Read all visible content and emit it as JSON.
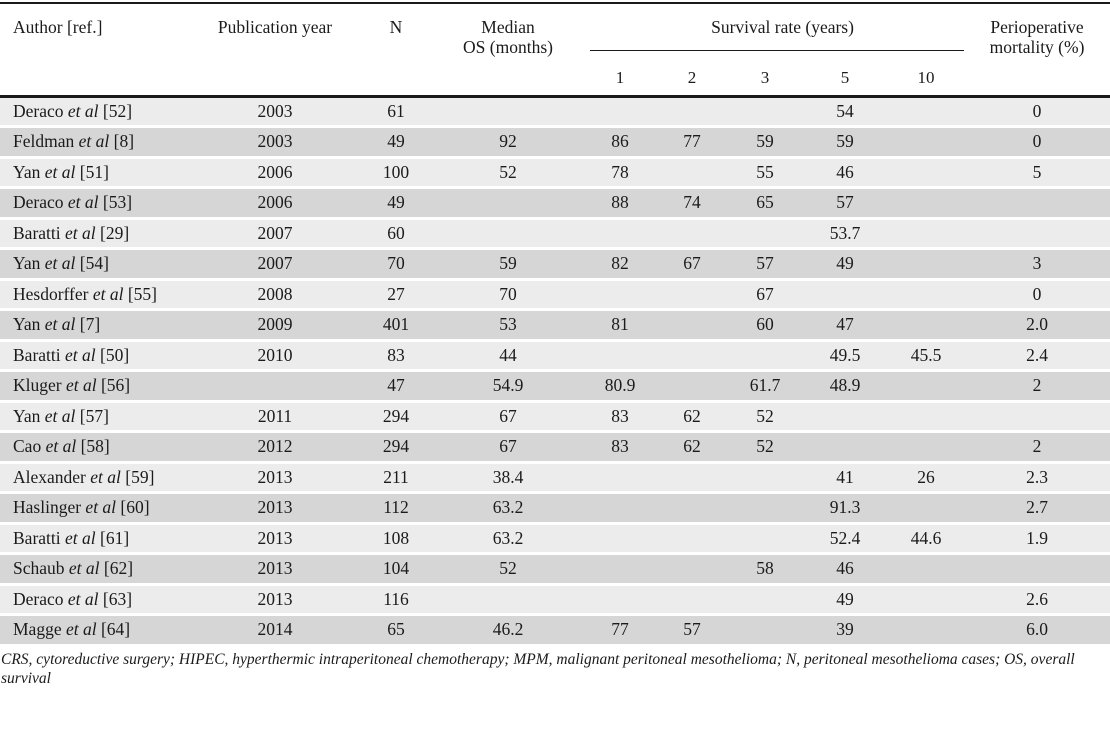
{
  "table": {
    "header": {
      "author": "Author [ref.]",
      "publication_year": "Publication year",
      "n": "N",
      "median_os_line1": "Median",
      "median_os_line2": "OS (months)",
      "survival_rate": "Survival rate (years)",
      "survival_years": [
        "1",
        "2",
        "3",
        "5",
        "10"
      ],
      "perioperative_line1": "Perioperative",
      "perioperative_line2": "mortality (%)"
    },
    "etal": "et al",
    "rows": [
      {
        "author": "Deraco",
        "ref": "[52]",
        "year": "2003",
        "n": "61",
        "median": "",
        "y1": "",
        "y2": "",
        "y3": "",
        "y5": "54",
        "y10": "",
        "mortality": "0"
      },
      {
        "author": "Feldman",
        "ref": "[8]",
        "year": "2003",
        "n": "49",
        "median": "92",
        "y1": "86",
        "y2": "77",
        "y3": "59",
        "y5": "59",
        "y10": "",
        "mortality": "0"
      },
      {
        "author": "Yan",
        "ref": "[51]",
        "year": "2006",
        "n": "100",
        "median": "52",
        "y1": "78",
        "y2": "",
        "y3": "55",
        "y5": "46",
        "y10": "",
        "mortality": "5"
      },
      {
        "author": "Deraco",
        "ref": "[53]",
        "year": "2006",
        "n": "49",
        "median": "",
        "y1": "88",
        "y2": "74",
        "y3": "65",
        "y5": "57",
        "y10": "",
        "mortality": ""
      },
      {
        "author": "Baratti",
        "ref": "[29]",
        "year": "2007",
        "n": "60",
        "median": "",
        "y1": "",
        "y2": "",
        "y3": "",
        "y5": "53.7",
        "y10": "",
        "mortality": ""
      },
      {
        "author": "Yan",
        "ref": "[54]",
        "year": "2007",
        "n": "70",
        "median": "59",
        "y1": "82",
        "y2": "67",
        "y3": "57",
        "y5": "49",
        "y10": "",
        "mortality": "3"
      },
      {
        "author": "Hesdorffer",
        "ref": "[55]",
        "year": "2008",
        "n": "27",
        "median": "70",
        "y1": "",
        "y2": "",
        "y3": "67",
        "y5": "",
        "y10": "",
        "mortality": "0"
      },
      {
        "author": "Yan",
        "ref": "[7]",
        "year": "2009",
        "n": "401",
        "median": "53",
        "y1": "81",
        "y2": "",
        "y3": "60",
        "y5": "47",
        "y10": "",
        "mortality": "2.0"
      },
      {
        "author": "Baratti",
        "ref": "[50]",
        "year": "2010",
        "n": "83",
        "median": "44",
        "y1": "",
        "y2": "",
        "y3": "",
        "y5": "49.5",
        "y10": "45.5",
        "mortality": "2.4"
      },
      {
        "author": "Kluger",
        "ref": "[56]",
        "year": "",
        "n": "47",
        "median": "54.9",
        "y1": "80.9",
        "y2": "",
        "y3": "61.7",
        "y5": "48.9",
        "y10": "",
        "mortality": "2"
      },
      {
        "author": "Yan",
        "ref": "[57]",
        "year": "2011",
        "n": "294",
        "median": "67",
        "y1": "83",
        "y2": "62",
        "y3": "52",
        "y5": "",
        "y10": "",
        "mortality": ""
      },
      {
        "author": "Cao",
        "ref": "[58]",
        "year": "2012",
        "n": "294",
        "median": "67",
        "y1": "83",
        "y2": "62",
        "y3": "52",
        "y5": "",
        "y10": "",
        "mortality": "2"
      },
      {
        "author": "Alexander",
        "ref": "[59]",
        "year": "2013",
        "n": "211",
        "median": "38.4",
        "y1": "",
        "y2": "",
        "y3": "",
        "y5": "41",
        "y10": "26",
        "mortality": "2.3"
      },
      {
        "author": "Haslinger",
        "ref": "[60]",
        "year": "2013",
        "n": "112",
        "median": "63.2",
        "y1": "",
        "y2": "",
        "y3": "",
        "y5": "91.3",
        "y10": "",
        "mortality": "2.7"
      },
      {
        "author": "Baratti",
        "ref": "[61]",
        "year": "2013",
        "n": "108",
        "median": "63.2",
        "y1": "",
        "y2": "",
        "y3": "",
        "y5": "52.4",
        "y10": "44.6",
        "mortality": "1.9"
      },
      {
        "author": "Schaub",
        "ref": "[62]",
        "year": "2013",
        "n": "104",
        "median": "52",
        "y1": "",
        "y2": "",
        "y3": "58",
        "y5": "46",
        "y10": "",
        "mortality": ""
      },
      {
        "author": "Deraco",
        "ref": "[63]",
        "year": "2013",
        "n": "116",
        "median": "",
        "y1": "",
        "y2": "",
        "y3": "",
        "y5": "49",
        "y10": "",
        "mortality": "2.6"
      },
      {
        "author": "Magge",
        "ref": "[64]",
        "year": "2014",
        "n": "65",
        "median": "46.2",
        "y1": "77",
        "y2": "57",
        "y3": "",
        "y5": "39",
        "y10": "",
        "mortality": "6.0"
      }
    ],
    "footnote": "CRS, cytoreductive surgery; HIPEC, hyperthermic intraperitoneal chemotherapy; MPM, malignant peritoneal mesothelioma; N, peritoneal mesothelioma cases; OS, overall survival"
  },
  "colors": {
    "row_light": "#ececec",
    "row_dark": "#d6d6d6",
    "rule": "#1a1a1a"
  }
}
